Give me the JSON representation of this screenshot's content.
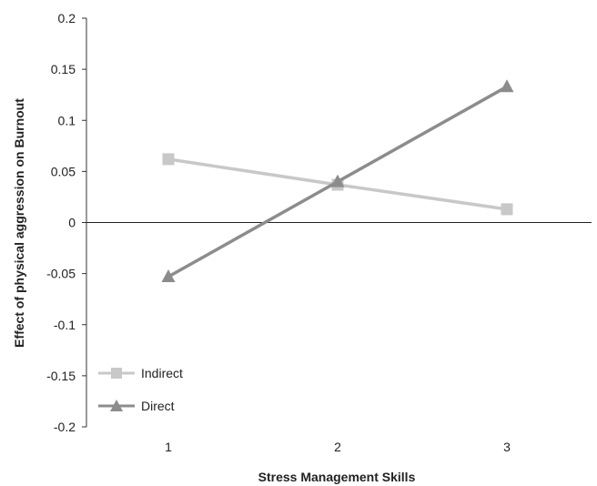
{
  "chart_data": {
    "type": "line",
    "title": "",
    "xlabel": "Stress Management Skills",
    "ylabel": "Effect of physical aggression on Burnout",
    "categories": [
      "1",
      "2",
      "3"
    ],
    "y_ticks": [
      "0.2",
      "0.15",
      "0.1",
      "0.05",
      "0",
      "-0.05",
      "-0.1",
      "-0.15",
      "-0.2"
    ],
    "ylim": [
      -0.2,
      0.2
    ],
    "grid": false,
    "legend_position": "bottom-left",
    "series": [
      {
        "name": "Indirect",
        "marker": "square",
        "color": "#c8c8c8",
        "values": [
          0.062,
          0.037,
          0.013
        ]
      },
      {
        "name": "Direct",
        "marker": "triangle",
        "color": "#8c8c8c",
        "values": [
          -0.053,
          0.04,
          0.133
        ]
      }
    ]
  }
}
